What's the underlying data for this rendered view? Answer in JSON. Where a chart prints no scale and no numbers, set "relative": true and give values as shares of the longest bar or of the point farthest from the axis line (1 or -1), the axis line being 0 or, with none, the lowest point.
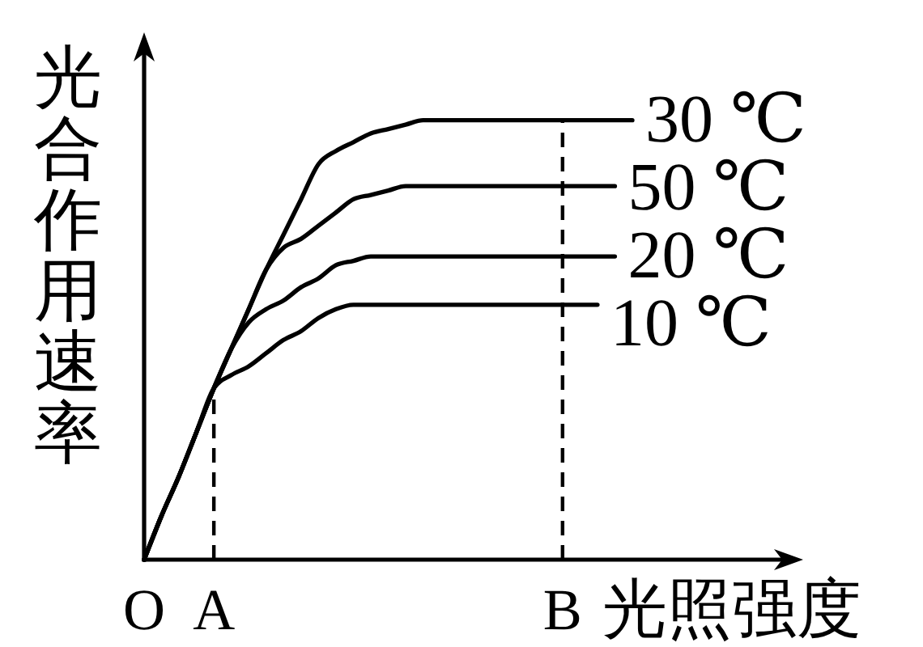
{
  "chart_data": {
    "type": "line",
    "relative": true,
    "xlabel": "光照强度",
    "ylabel": "光合作用速率",
    "line_style": "solid",
    "categories": [
      "O",
      null,
      null,
      null,
      "A",
      null,
      null,
      null,
      null,
      null,
      null,
      null,
      null,
      null,
      null,
      null,
      null,
      null,
      null,
      null,
      null,
      null,
      null,
      null,
      "B",
      null,
      null,
      null,
      null
    ],
    "ref_lines": [
      {
        "axis": "x",
        "value": "A",
        "line_style": "dashed",
        "color": "#000000"
      },
      {
        "axis": "x",
        "value": "B",
        "line_style": "dashed",
        "color": "#000000"
      }
    ],
    "series": [
      {
        "name": "30 ℃",
        "color": "#000000",
        "values": [
          0,
          0.1,
          0.19,
          0.29,
          0.39,
          0.48,
          0.57,
          0.66,
          0.74,
          0.82,
          0.9,
          0.93,
          0.95,
          0.97,
          0.98,
          0.99,
          1,
          1,
          1,
          1,
          1,
          1,
          1,
          1,
          1,
          1,
          1,
          1,
          1
        ]
      },
      {
        "name": "50 ℃",
        "color": "#000000",
        "values": [
          0,
          0.1,
          0.19,
          0.29,
          0.39,
          0.48,
          0.57,
          0.66,
          0.71,
          0.73,
          0.76,
          0.79,
          0.82,
          0.83,
          0.84,
          0.85,
          0.85,
          0.85,
          0.85,
          0.85,
          0.85,
          0.85,
          0.85,
          0.85,
          0.85,
          0.85,
          0.85,
          0.85,
          null
        ]
      },
      {
        "name": "20 ℃",
        "color": "#000000",
        "values": [
          0,
          0.1,
          0.19,
          0.29,
          0.39,
          0.48,
          0.54,
          0.57,
          0.59,
          0.62,
          0.64,
          0.67,
          0.68,
          0.69,
          0.69,
          0.69,
          0.69,
          0.69,
          0.69,
          0.69,
          0.69,
          0.69,
          0.69,
          0.69,
          0.69,
          0.69,
          0.69,
          0.69,
          null
        ]
      },
      {
        "name": "10 ℃",
        "color": "#000000",
        "values": [
          0,
          0.1,
          0.19,
          0.29,
          0.39,
          0.42,
          0.44,
          0.47,
          0.5,
          0.52,
          0.55,
          0.57,
          0.58,
          0.58,
          0.58,
          0.58,
          0.58,
          0.58,
          0.58,
          0.58,
          0.58,
          0.58,
          0.58,
          0.58,
          0.58,
          0.58,
          0.58,
          null,
          null
        ]
      }
    ]
  }
}
